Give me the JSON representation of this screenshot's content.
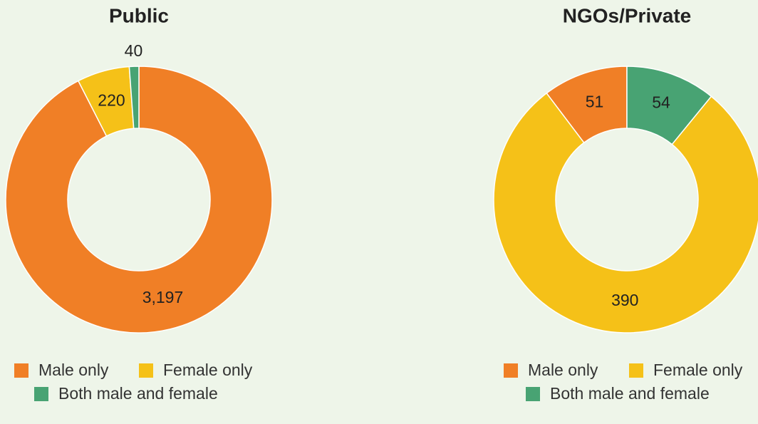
{
  "chart_data": [
    {
      "type": "pie",
      "title": "Public",
      "direction": "clockwise",
      "categories": [
        "Male only",
        "Female only",
        "Both male and female"
      ],
      "colors": [
        "#f07f26",
        "#f5c118",
        "#48a373"
      ],
      "values": [
        3197,
        220,
        40
      ],
      "value_labels": [
        "3,197",
        "220",
        "40"
      ]
    },
    {
      "type": "pie",
      "title": "NGOs/Private",
      "direction": "counterclockwise",
      "categories": [
        "Male only",
        "Female only",
        "Both male and female"
      ],
      "colors": [
        "#f07f26",
        "#f5c118",
        "#48a373"
      ],
      "values": [
        51,
        390,
        54
      ],
      "value_labels": [
        "51",
        "390",
        "54"
      ]
    }
  ]
}
